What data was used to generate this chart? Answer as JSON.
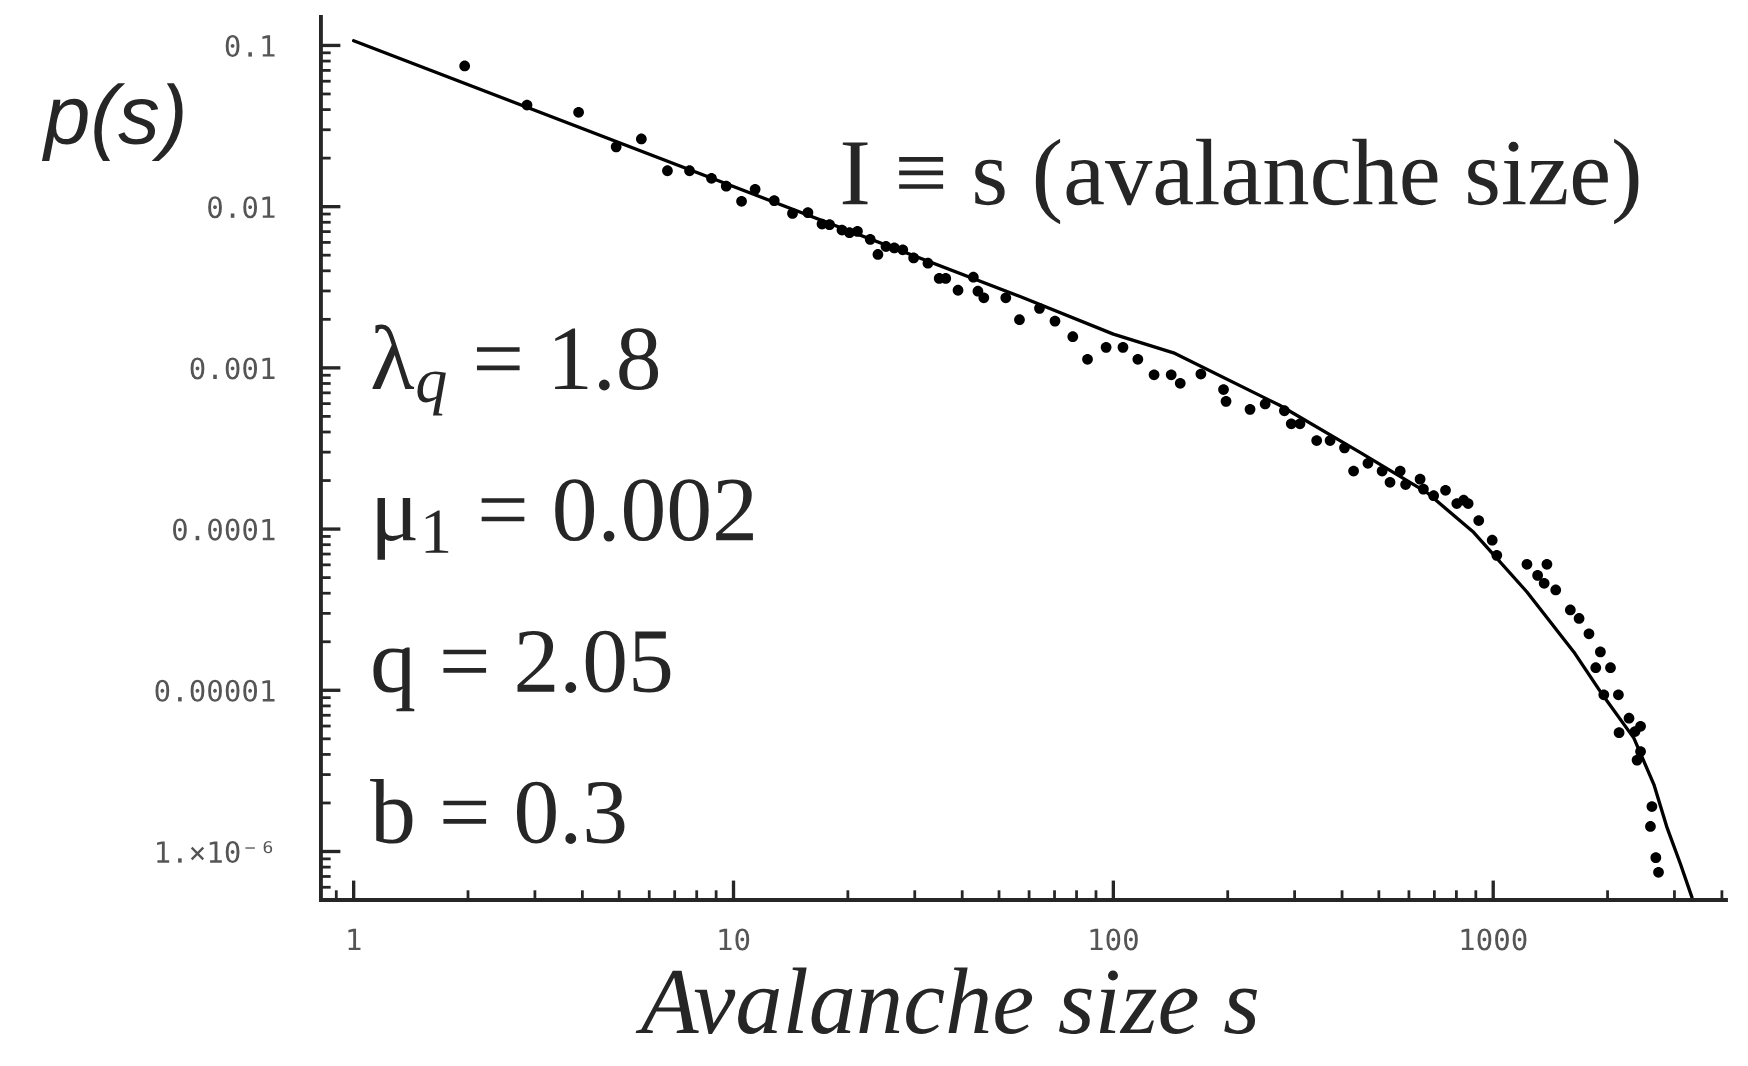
{
  "chart_data": {
    "type": "scatter",
    "xlabel": "Avalanche size s",
    "ylabel": "p(s)",
    "log": "xy",
    "xlim": [
      0.82,
      4100
    ],
    "ylim": [
      5e-07,
      0.15
    ],
    "xticks": [
      1,
      10,
      100,
      1000
    ],
    "yticks": [
      {
        "value": 1e-06,
        "label": "1.×10⁻⁶"
      },
      {
        "value": 1e-05,
        "label": "0.00001"
      },
      0.0001,
      0.001,
      0.01,
      0.1
    ],
    "annotations": [
      "I ≡ s (avalanche size)",
      "λ$_{q}$ = 1.8",
      "μ$_{1}$ = 0.002",
      "q = 2.05",
      "b = 0.3"
    ],
    "series": [
      {
        "color": "#000000",
        "marker": "circle",
        "x": [
          1.96,
          2.86,
          3.91,
          4.91,
          5.72,
          6.7,
          7.66,
          8.75,
          9.57,
          10.5,
          11.4,
          12.8,
          14.3,
          15.7,
          17.1,
          17.9,
          19.3,
          20.2,
          21.2,
          22.9,
          24.0,
          25.2,
          26.5,
          27.9,
          29.8,
          32.5,
          34.8,
          36.2,
          39.0,
          42.8,
          44.0,
          45.6,
          52.1,
          56.6,
          63.9,
          70.2,
          78.2,
          85.5,
          95.7,
          106,
          116,
          128,
          142,
          150,
          170,
          195,
          198,
          229,
          251,
          282,
          294,
          310,
          343,
          372,
          406,
          429,
          468,
          510,
          535,
          569,
          588,
          642,
          655,
          697,
          749,
          802,
          836,
          859,
          916,
          994,
          1022,
          1227,
          1309,
          1385,
          1362,
          1461,
          1596,
          1683,
          1787,
          1915,
          1862,
          2036,
          1955,
          2136,
          2278,
          2443,
          2145,
          2362,
          2443,
          2392,
          2617,
          2594,
          2680,
          2724
        ],
        "values": [
          0.0746,
          0.0427,
          0.0385,
          0.0235,
          0.0263,
          0.0167,
          0.0167,
          0.015,
          0.0134,
          0.0108,
          0.0128,
          0.0109,
          0.00908,
          0.00918,
          0.0078,
          0.00774,
          0.00716,
          0.0069,
          0.00703,
          0.00627,
          0.00505,
          0.00566,
          0.00555,
          0.0054,
          0.00481,
          0.00446,
          0.00359,
          0.00359,
          0.00303,
          0.00365,
          0.00299,
          0.00272,
          0.00272,
          0.00199,
          0.00234,
          0.00195,
          0.00156,
          0.00113,
          0.00134,
          0.00134,
          0.00113,
          0.000906,
          0.000906,
          0.000802,
          0.000916,
          0.000734,
          0.00062,
          0.000553,
          0.000597,
          0.000542,
          0.00045,
          0.00045,
          0.000354,
          0.000354,
          0.000319,
          0.000229,
          0.000256,
          0.000229,
          0.000195,
          0.000229,
          0.000189,
          0.000204,
          0.000177,
          0.000161,
          0.000174,
          0.000144,
          0.000151,
          0.000144,
          0.000113,
          8.53e-05,
          6.87e-05,
          6.05e-05,
          5.16e-05,
          6.05e-05,
          4.61e-05,
          4.19e-05,
          3.15e-05,
          2.79e-05,
          2.24e-05,
          1.73e-05,
          1.38e-05,
          1.38e-05,
          9.38e-06,
          9.38e-06,
          6.71e-06,
          5.98e-06,
          5.46e-06,
          5.55e-06,
          4.17e-06,
          3.69e-06,
          1.9e-06,
          1.43e-06,
          9.16e-07,
          7.43e-07
        ]
      },
      {
        "type": "line",
        "color": "#000000",
        "line_style": "solid",
        "x": [
          1.0,
          56.6,
          100,
          144,
          274,
          446,
          668,
          888,
          1227,
          1630,
          1915,
          2346,
          2649,
          2870,
          3113,
          3336
        ],
        "values": [
          0.107,
          0.00278,
          0.00162,
          0.00124,
          0.000586,
          0.000299,
          0.000169,
          9.55e-05,
          4.07e-05,
          1.73e-05,
          9.8e-06,
          5.05e-06,
          2.6e-06,
          1.4e-06,
          8.34e-07,
          5.19e-07
        ]
      }
    ]
  }
}
